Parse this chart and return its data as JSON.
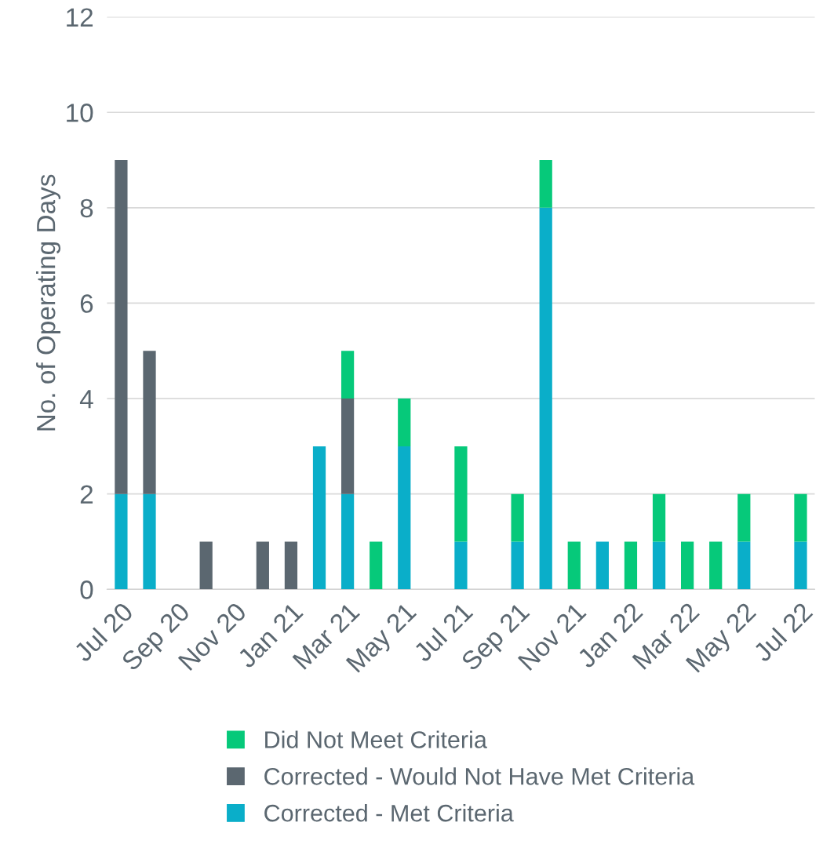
{
  "chart_data": {
    "type": "bar",
    "stacked": true,
    "ylabel": "No. of Operating Days",
    "categories": [
      "Jul 20",
      null,
      "Sep 20",
      null,
      "Nov 20",
      null,
      "Jan 21",
      null,
      "Mar 21",
      null,
      "May 21",
      null,
      "Jul 21",
      null,
      "Sep 21",
      null,
      "Nov 21",
      null,
      "Jan 22",
      null,
      "Mar 22",
      null,
      "May 22",
      null,
      "Jul 22"
    ],
    "series": [
      {
        "name": "Corrected - Met Criteria",
        "color": "#0aaec9",
        "values": [
          2,
          2,
          0,
          0,
          0,
          0,
          0,
          3,
          2,
          0,
          3,
          0,
          1,
          0,
          1,
          8,
          0,
          1,
          0,
          1,
          0,
          0,
          1,
          0,
          1
        ]
      },
      {
        "name": "Corrected - Would Not Have Met Criteria",
        "color": "#5b6770",
        "values": [
          7,
          3,
          0,
          1,
          0,
          1,
          1,
          0,
          2,
          0,
          0,
          0,
          0,
          0,
          0,
          0,
          0,
          0,
          0,
          0,
          0,
          0,
          0,
          0,
          0
        ]
      },
      {
        "name": "Did Not Meet Criteria",
        "color": "#06c97a",
        "values": [
          0,
          0,
          0,
          0,
          0,
          0,
          0,
          0,
          1,
          1,
          1,
          0,
          2,
          0,
          1,
          1,
          1,
          0,
          1,
          1,
          1,
          1,
          1,
          0,
          1
        ]
      }
    ],
    "ylim": [
      0,
      12
    ],
    "yticks": [
      0,
      2,
      4,
      6,
      8,
      10,
      12
    ],
    "grid": "y",
    "legend": "bottom"
  }
}
